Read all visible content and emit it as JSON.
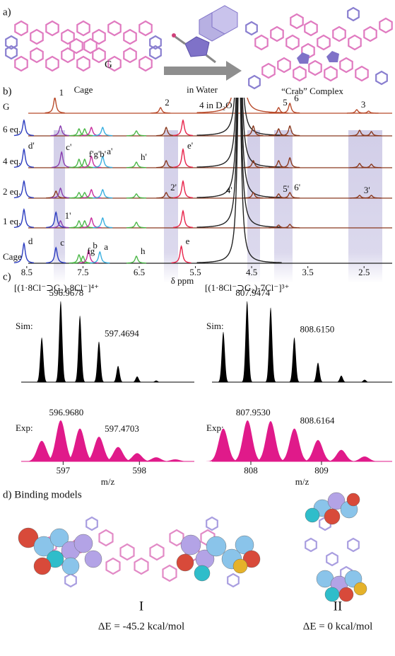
{
  "figure": {
    "a": {
      "label": "a)",
      "cage_caption": "Cage",
      "guest": "G",
      "arrow_caption": "in Water",
      "complex_caption": "“Crab” Complex"
    },
    "b": {
      "label": "b)"
    },
    "c": {
      "label": "c)"
    },
    "d": {
      "label": "d) Binding models",
      "models": [
        {
          "name": "I",
          "energy": "ΔE = -45.2 kcal/mol"
        },
        {
          "name": "II",
          "energy": "ΔE = 0 kcal/mol"
        }
      ]
    }
  },
  "chart_data": [
    {
      "type": "nmr",
      "x_label": "δ ppm",
      "xlim": [
        8.85,
        2.0
      ],
      "xticks": [
        8.5,
        7.5,
        6.5,
        5.5,
        4.5,
        3.5,
        2.5
      ],
      "series": [
        {
          "name": "G",
          "color": "#b84a2a",
          "x": [
            8.0,
            6.12,
            4.72,
            4.02,
            3.82,
            2.63,
            2.42
          ],
          "values": [
            22,
            8,
            300,
            8,
            14,
            5,
            3
          ],
          "labels": [
            "1",
            "2",
            "4 in D₂O",
            "5",
            "6",
            "3",
            null
          ]
        },
        {
          "name": "6 eq.",
          "color": "#8a3a20",
          "x": [
            8.55,
            7.9,
            7.57,
            7.47,
            7.35,
            7.15,
            6.55,
            6.02,
            5.72,
            4.72,
            4.47,
            4.02,
            3.82,
            2.58,
            2.37
          ],
          "values": [
            22,
            14,
            10,
            10,
            12,
            12,
            7,
            12,
            22,
            300,
            14,
            10,
            14,
            8,
            6
          ],
          "colors": [
            "#2b3cc0",
            "#8a3fb0",
            "#4cb848",
            "#4cb848",
            "#c8309e",
            "#3ab0e0",
            "#4cb848",
            "#8a3a20",
            "#e8234a",
            "#222222",
            "#8a3a20",
            "#8a3a20",
            "#8a3a20",
            "#8a3a20",
            "#8a3a20"
          ]
        },
        {
          "name": "4 eq.",
          "color": "#8a3a20",
          "x": [
            8.55,
            7.88,
            7.57,
            7.47,
            7.35,
            7.15,
            6.55,
            6.02,
            5.72,
            4.72,
            4.47,
            4.02,
            3.82,
            2.58,
            2.37
          ],
          "values": [
            26,
            22,
            12,
            12,
            16,
            16,
            8,
            10,
            26,
            300,
            10,
            10,
            14,
            6,
            5
          ],
          "colors": [
            "#2b3cc0",
            "#8a3fb0",
            "#4cb848",
            "#4cb848",
            "#c8309e",
            "#3ab0e0",
            "#4cb848",
            "#8a3a20",
            "#e8234a",
            "#222222",
            "#8a3a20",
            "#8a3a20",
            "#8a3a20",
            "#8a3a20",
            "#8a3a20"
          ],
          "labels": [
            "d'",
            "c'",
            null,
            "f'g'b'",
            null,
            "a'",
            "h'",
            null,
            "e'",
            null,
            null,
            null,
            null,
            null,
            null
          ]
        },
        {
          "name": "2 eq.",
          "color": "#8a3a20",
          "x": [
            8.55,
            7.98,
            7.9,
            7.57,
            7.47,
            7.35,
            7.15,
            6.55,
            6.02,
            5.72,
            4.72,
            4.47,
            4.02,
            3.82,
            2.58,
            2.37
          ],
          "values": [
            24,
            10,
            14,
            8,
            8,
            12,
            12,
            6,
            8,
            24,
            300,
            8,
            6,
            8,
            4,
            4
          ],
          "colors": [
            "#2b3cc0",
            "#8a3a20",
            "#8a3fb0",
            "#4cb848",
            "#4cb848",
            "#c8309e",
            "#3ab0e0",
            "#4cb848",
            "#8a3a20",
            "#e8234a",
            "#222222",
            "#8a3a20",
            "#8a3a20",
            "#8a3a20",
            "#8a3a20",
            "#8a3a20"
          ],
          "labels": [
            null,
            null,
            null,
            null,
            null,
            null,
            null,
            null,
            "2'",
            null,
            "4'",
            null,
            "5'",
            "6'",
            "3'",
            null
          ]
        },
        {
          "name": "1 eq.",
          "color": "#8a3a20",
          "x": [
            8.55,
            7.98,
            7.9,
            7.57,
            7.47,
            7.35,
            7.15,
            6.55,
            5.72,
            4.72,
            4.02,
            3.82
          ],
          "values": [
            26,
            22,
            10,
            10,
            10,
            14,
            14,
            8,
            24,
            300,
            4,
            5
          ],
          "colors": [
            "#2b3cc0",
            "#2b3cc0",
            "#8a3fb0",
            "#4cb848",
            "#4cb848",
            "#c8309e",
            "#3ab0e0",
            "#4cb848",
            "#e8234a",
            "#222222",
            "#8a3a20",
            "#8a3a20"
          ],
          "labels": [
            null,
            null,
            "1'",
            null,
            null,
            null,
            null,
            null,
            null,
            null,
            null,
            null
          ]
        },
        {
          "name": "Cage",
          "color": "#222222",
          "x": [
            8.55,
            7.98,
            7.57,
            7.5,
            7.4,
            7.2,
            6.55,
            5.75,
            4.72
          ],
          "values": [
            28,
            22,
            12,
            10,
            18,
            16,
            10,
            24,
            300
          ],
          "colors": [
            "#2b3cc0",
            "#2b3cc0",
            "#4cb848",
            "#4cb848",
            "#c8309e",
            "#3ab0e0",
            "#4cb848",
            "#e8234a",
            "#222222"
          ],
          "labels": [
            "d",
            "c",
            null,
            "fg",
            "b",
            "a",
            "h",
            "e",
            null
          ]
        }
      ]
    },
    {
      "type": "mass_spectrum",
      "title": "[(1·8Cl⁻⊃G₂)-8Cl⁻]⁴⁺",
      "x_label": "m/z",
      "xlim": [
        596.45,
        598.72
      ],
      "xticks": [
        597,
        598
      ],
      "series": [
        {
          "name": "Sim:",
          "color": "#000000",
          "x": [
            596.72,
            596.9678,
            597.22,
            597.4694,
            597.72,
            597.97,
            598.22
          ],
          "values": [
            55,
            100,
            82,
            50,
            20,
            7,
            2
          ],
          "x_labels": [
            null,
            "596.9678",
            null,
            "597.4694",
            null,
            null,
            null
          ]
        },
        {
          "name": "Exp:",
          "color": "#e01a8a",
          "x": [
            596.72,
            596.968,
            597.22,
            597.4703,
            597.72,
            597.97,
            598.22,
            598.47
          ],
          "values": [
            50,
            100,
            80,
            60,
            35,
            20,
            10,
            5
          ],
          "x_labels": [
            null,
            "596.9680",
            null,
            "597.4703",
            null,
            null,
            null,
            null
          ]
        }
      ]
    },
    {
      "type": "mass_spectrum",
      "title": "[(1·8Cl⁻⊃G₂)-7Cl⁻]³⁺",
      "x_label": "m/z",
      "xlim": [
        807.45,
        810.0
      ],
      "xticks": [
        808,
        809
      ],
      "series": [
        {
          "name": "Sim:",
          "color": "#000000",
          "x": [
            807.61,
            807.9474,
            808.28,
            808.615,
            808.95,
            809.28,
            809.61
          ],
          "values": [
            62,
            100,
            92,
            55,
            24,
            8,
            3
          ],
          "x_labels": [
            null,
            "807.9474",
            null,
            "808.6150",
            null,
            null,
            null
          ]
        },
        {
          "name": "Exp:",
          "color": "#e01a8a",
          "x": [
            807.61,
            807.953,
            808.28,
            808.6164,
            808.95,
            809.28,
            809.61
          ],
          "values": [
            80,
            100,
            98,
            80,
            52,
            28,
            12
          ],
          "x_labels": [
            null,
            "807.9530",
            null,
            "808.6164",
            null,
            null,
            null
          ]
        }
      ]
    }
  ]
}
